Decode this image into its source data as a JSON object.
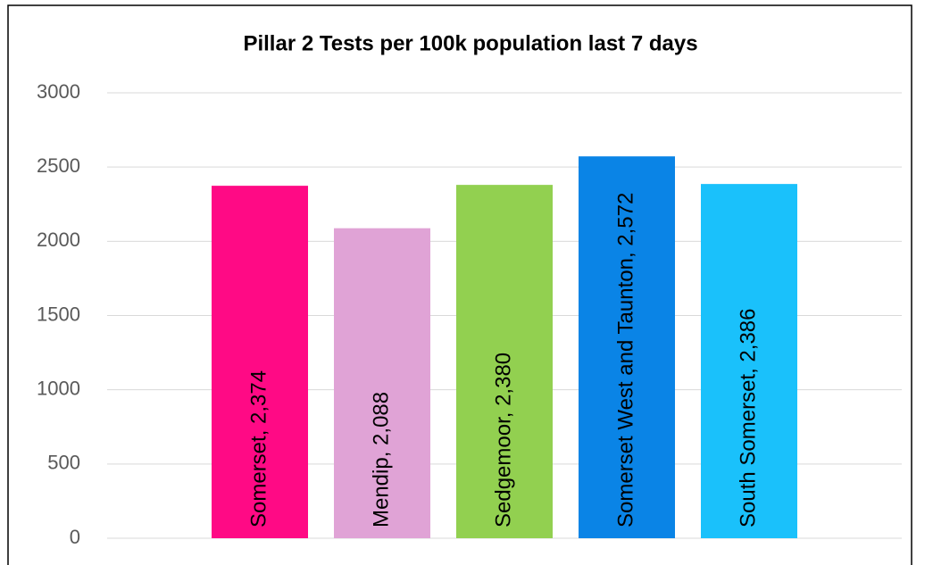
{
  "chart_data": {
    "type": "bar",
    "title": "Pillar 2 Tests per 100k population last 7 days",
    "values": [
      2374,
      2088,
      2380,
      2572,
      2386
    ],
    "value_labels": [
      "Somerset, 2,374",
      "Mendip, 2,088",
      "Sedgemoor, 2,380",
      "Somerset West and Taunton, 2,572",
      "South Somerset, 2,386"
    ],
    "colors": [
      "#ff0a85",
      "#e0a3d6",
      "#92d050",
      "#0a84e6",
      "#1ac1fb"
    ],
    "ylim": [
      0,
      3000
    ],
    "yticks": [
      0,
      500,
      1000,
      1500,
      2000,
      2500,
      3000
    ],
    "grid": true
  }
}
